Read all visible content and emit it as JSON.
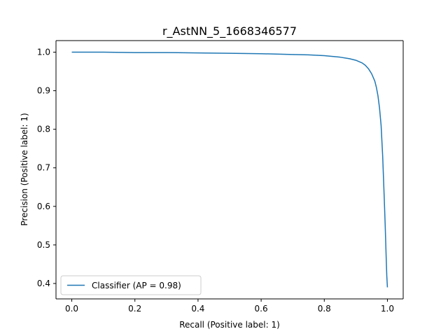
{
  "chart_data": {
    "type": "line",
    "title": "r_AstNN_5_1668346577",
    "xlabel": "Recall (Positive label: 1)",
    "ylabel": "Precision (Positive label: 1)",
    "xlim": [
      -0.05,
      1.05
    ],
    "ylim": [
      0.36,
      1.03
    ],
    "xticks": [
      0.0,
      0.2,
      0.4,
      0.6,
      0.8,
      1.0
    ],
    "xtick_labels": [
      "0.0",
      "0.2",
      "0.4",
      "0.6",
      "0.8",
      "1.0"
    ],
    "yticks": [
      0.4,
      0.5,
      0.6,
      0.7,
      0.8,
      0.9,
      1.0
    ],
    "ytick_labels": [
      "0.4",
      "0.5",
      "0.6",
      "0.7",
      "0.8",
      "0.9",
      "1.0"
    ],
    "grid": false,
    "legend_position": "lower-left",
    "series": [
      {
        "name": "Classifier (AP = 0.98)",
        "color": "#1f77b4",
        "x": [
          0.0,
          0.1,
          0.2,
          0.3,
          0.4,
          0.5,
          0.6,
          0.7,
          0.75,
          0.8,
          0.85,
          0.88,
          0.9,
          0.92,
          0.93,
          0.94,
          0.95,
          0.96,
          0.965,
          0.97,
          0.975,
          0.98,
          0.985,
          0.99,
          0.993,
          0.996,
          0.998,
          1.0
        ],
        "y": [
          1.0,
          1.0,
          0.999,
          0.999,
          0.998,
          0.997,
          0.996,
          0.994,
          0.993,
          0.991,
          0.987,
          0.983,
          0.979,
          0.972,
          0.966,
          0.957,
          0.944,
          0.925,
          0.909,
          0.887,
          0.855,
          0.81,
          0.73,
          0.62,
          0.55,
          0.47,
          0.42,
          0.39
        ]
      }
    ]
  }
}
